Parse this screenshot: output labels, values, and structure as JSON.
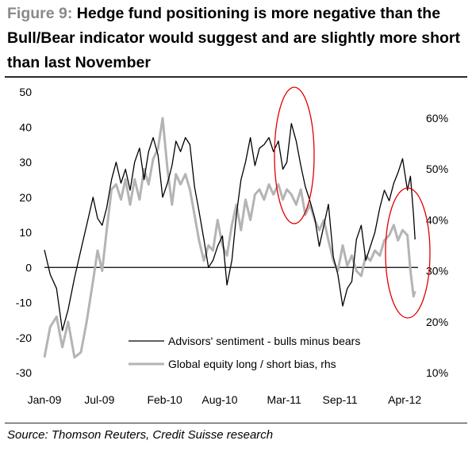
{
  "title": {
    "figure_label": "Figure 9:",
    "text": "Hedge fund positioning is more negative than the Bull/Bear indicator would suggest and are slightly more short than last November"
  },
  "source": "Source: Thomson Reuters, Credit Suisse research",
  "colors": {
    "advisors_line": "#000000",
    "bias_line": "#b4b4b4",
    "highlight_ellipse": "#e00000",
    "zero_line": "#000000"
  },
  "chart_data": {
    "type": "line",
    "x_tick_labels": [
      "Jan-09",
      "Jul-09",
      "Feb-10",
      "Aug-10",
      "Mar-11",
      "Sep-11",
      "Apr-12"
    ],
    "x_range": [
      "2009-01",
      "2012-05"
    ],
    "left_axis": {
      "ticks": [
        "50",
        "40",
        "30",
        "20",
        "10",
        "0",
        "-10",
        "-20",
        "-30"
      ],
      "range": [
        -30,
        50
      ]
    },
    "right_axis": {
      "ticks": [
        "60%",
        "50%",
        "40%",
        "30%",
        "20%",
        "10%"
      ],
      "range": [
        10,
        60
      ]
    },
    "legend": {
      "placement": "bottom-right",
      "entries": [
        "Advisors' sentiment - bulls minus bears",
        "Global equity long / short bias, rhs"
      ]
    },
    "annotations": [
      "red ellipse around Mar-11 peak",
      "red ellipse around Apr-12 decline"
    ],
    "series": [
      {
        "name": "Advisors' sentiment - bulls minus bears",
        "axis": "left",
        "points": [
          [
            "2009-01-01",
            5
          ],
          [
            "2009-01-20",
            -2
          ],
          [
            "2009-02-10",
            -6
          ],
          [
            "2009-03-01",
            -18
          ],
          [
            "2009-03-20",
            -12
          ],
          [
            "2009-04-10",
            -3
          ],
          [
            "2009-05-01",
            5
          ],
          [
            "2009-05-20",
            12
          ],
          [
            "2009-06-10",
            20
          ],
          [
            "2009-06-25",
            14
          ],
          [
            "2009-07-10",
            12
          ],
          [
            "2009-07-25",
            17
          ],
          [
            "2009-08-10",
            25
          ],
          [
            "2009-08-25",
            30
          ],
          [
            "2009-09-10",
            24
          ],
          [
            "2009-09-25",
            28
          ],
          [
            "2009-10-10",
            22
          ],
          [
            "2009-10-25",
            30
          ],
          [
            "2009-11-10",
            34
          ],
          [
            "2009-11-25",
            25
          ],
          [
            "2009-12-10",
            33
          ],
          [
            "2009-12-25",
            37
          ],
          [
            "2010-01-10",
            32
          ],
          [
            "2010-01-25",
            20
          ],
          [
            "2010-02-10",
            24
          ],
          [
            "2010-02-25",
            29
          ],
          [
            "2010-03-10",
            36
          ],
          [
            "2010-03-25",
            33
          ],
          [
            "2010-04-10",
            37
          ],
          [
            "2010-04-25",
            35
          ],
          [
            "2010-05-10",
            23
          ],
          [
            "2010-05-25",
            16
          ],
          [
            "2010-06-10",
            8
          ],
          [
            "2010-06-25",
            0
          ],
          [
            "2010-07-10",
            2
          ],
          [
            "2010-07-25",
            6
          ],
          [
            "2010-08-10",
            9
          ],
          [
            "2010-08-25",
            -5
          ],
          [
            "2010-09-10",
            2
          ],
          [
            "2010-09-25",
            15
          ],
          [
            "2010-10-10",
            25
          ],
          [
            "2010-10-25",
            30
          ],
          [
            "2010-11-10",
            37
          ],
          [
            "2010-11-25",
            29
          ],
          [
            "2010-12-10",
            34
          ],
          [
            "2010-12-25",
            35
          ],
          [
            "2011-01-10",
            37
          ],
          [
            "2011-01-25",
            33
          ],
          [
            "2011-02-10",
            36
          ],
          [
            "2011-02-25",
            28
          ],
          [
            "2011-03-10",
            30
          ],
          [
            "2011-03-25",
            41
          ],
          [
            "2011-04-10",
            36
          ],
          [
            "2011-04-25",
            29
          ],
          [
            "2011-05-10",
            23
          ],
          [
            "2011-05-25",
            19
          ],
          [
            "2011-06-10",
            14
          ],
          [
            "2011-06-25",
            6
          ],
          [
            "2011-07-10",
            12
          ],
          [
            "2011-07-25",
            18
          ],
          [
            "2011-08-10",
            3
          ],
          [
            "2011-08-25",
            -2
          ],
          [
            "2011-09-10",
            -11
          ],
          [
            "2011-09-25",
            -6
          ],
          [
            "2011-10-10",
            -4
          ],
          [
            "2011-10-25",
            8
          ],
          [
            "2011-11-10",
            12
          ],
          [
            "2011-11-25",
            2
          ],
          [
            "2011-12-10",
            6
          ],
          [
            "2011-12-25",
            10
          ],
          [
            "2012-01-10",
            17
          ],
          [
            "2012-01-25",
            22
          ],
          [
            "2012-02-10",
            19
          ],
          [
            "2012-02-25",
            24
          ],
          [
            "2012-03-10",
            27
          ],
          [
            "2012-03-25",
            31
          ],
          [
            "2012-04-10",
            22
          ],
          [
            "2012-04-20",
            26
          ],
          [
            "2012-04-30",
            15
          ],
          [
            "2012-05-05",
            8
          ]
        ]
      },
      {
        "name": "Global equity long / short bias, rhs",
        "axis": "right",
        "points": [
          [
            "2009-01-01",
            13
          ],
          [
            "2009-01-20",
            19
          ],
          [
            "2009-02-10",
            21
          ],
          [
            "2009-03-01",
            15
          ],
          [
            "2009-03-20",
            20
          ],
          [
            "2009-04-10",
            13
          ],
          [
            "2009-05-01",
            14
          ],
          [
            "2009-05-20",
            20
          ],
          [
            "2009-06-10",
            28
          ],
          [
            "2009-06-25",
            34
          ],
          [
            "2009-07-10",
            30
          ],
          [
            "2009-07-25",
            38
          ],
          [
            "2009-08-10",
            46
          ],
          [
            "2009-08-25",
            47
          ],
          [
            "2009-09-10",
            44
          ],
          [
            "2009-09-25",
            48
          ],
          [
            "2009-10-10",
            43
          ],
          [
            "2009-10-25",
            48
          ],
          [
            "2009-11-10",
            44
          ],
          [
            "2009-11-25",
            50
          ],
          [
            "2009-12-10",
            47
          ],
          [
            "2009-12-25",
            52
          ],
          [
            "2010-01-10",
            54
          ],
          [
            "2010-01-25",
            60
          ],
          [
            "2010-02-10",
            50
          ],
          [
            "2010-02-25",
            43
          ],
          [
            "2010-03-10",
            49
          ],
          [
            "2010-03-25",
            47
          ],
          [
            "2010-04-10",
            49
          ],
          [
            "2010-04-25",
            46
          ],
          [
            "2010-05-10",
            41
          ],
          [
            "2010-05-25",
            36
          ],
          [
            "2010-06-10",
            32
          ],
          [
            "2010-06-25",
            35
          ],
          [
            "2010-07-10",
            34
          ],
          [
            "2010-07-25",
            40
          ],
          [
            "2010-08-10",
            35
          ],
          [
            "2010-08-25",
            33
          ],
          [
            "2010-09-10",
            39
          ],
          [
            "2010-09-25",
            43
          ],
          [
            "2010-10-10",
            38
          ],
          [
            "2010-10-25",
            44
          ],
          [
            "2010-11-10",
            40
          ],
          [
            "2010-11-25",
            45
          ],
          [
            "2010-12-10",
            46
          ],
          [
            "2010-12-25",
            44
          ],
          [
            "2011-01-10",
            47
          ],
          [
            "2011-01-25",
            45
          ],
          [
            "2011-02-10",
            47
          ],
          [
            "2011-02-25",
            44
          ],
          [
            "2011-03-10",
            46
          ],
          [
            "2011-03-25",
            45
          ],
          [
            "2011-04-10",
            43
          ],
          [
            "2011-04-25",
            46
          ],
          [
            "2011-05-10",
            41
          ],
          [
            "2011-05-25",
            43
          ],
          [
            "2011-06-10",
            40
          ],
          [
            "2011-06-25",
            38
          ],
          [
            "2011-07-10",
            40
          ],
          [
            "2011-07-25",
            36
          ],
          [
            "2011-08-10",
            32
          ],
          [
            "2011-08-25",
            30
          ],
          [
            "2011-09-10",
            35
          ],
          [
            "2011-09-25",
            31
          ],
          [
            "2011-10-10",
            33
          ],
          [
            "2011-10-25",
            30
          ],
          [
            "2011-11-10",
            29
          ],
          [
            "2011-11-25",
            33
          ],
          [
            "2011-12-10",
            32
          ],
          [
            "2011-12-25",
            34
          ],
          [
            "2012-01-10",
            33
          ],
          [
            "2012-01-25",
            36
          ],
          [
            "2012-02-10",
            37
          ],
          [
            "2012-02-25",
            39
          ],
          [
            "2012-03-10",
            36
          ],
          [
            "2012-03-25",
            38
          ],
          [
            "2012-04-10",
            37
          ],
          [
            "2012-04-20",
            30
          ],
          [
            "2012-04-30",
            25
          ],
          [
            "2012-05-05",
            26
          ]
        ]
      }
    ]
  }
}
